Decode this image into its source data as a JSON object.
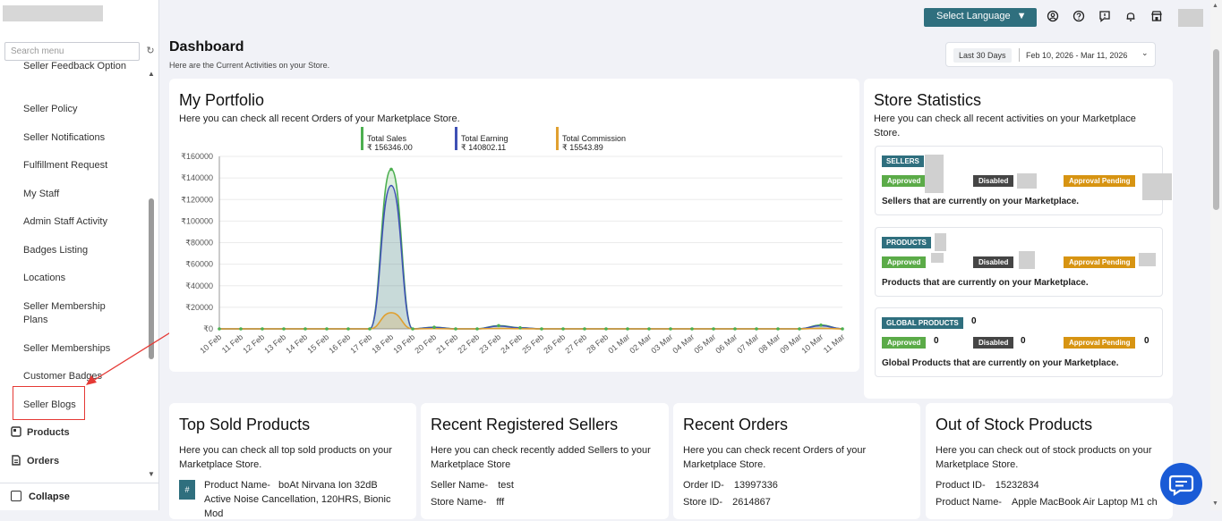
{
  "sidebar": {
    "search_placeholder": "Search menu",
    "items": [
      {
        "label": "Seller Feedback Option"
      },
      {
        "label": "Seller Policy"
      },
      {
        "label": "Seller Notifications"
      },
      {
        "label": "Fulfillment Request"
      },
      {
        "label": "My Staff"
      },
      {
        "label": "Admin Staff Activity"
      },
      {
        "label": "Badges Listing"
      },
      {
        "label": "Locations"
      },
      {
        "label": "Seller Membership Plans"
      },
      {
        "label": "Seller Memberships"
      },
      {
        "label": "Customer Badges"
      },
      {
        "label": "Seller Blogs"
      },
      {
        "label": "Products",
        "icon": "products-icon"
      },
      {
        "label": "Orders",
        "icon": "orders-icon"
      }
    ],
    "collapse_label": "Collapse"
  },
  "topbar": {
    "language_button": "Select Language",
    "icons": [
      "user-icon",
      "help-icon",
      "feedback-icon",
      "bell-icon",
      "store-icon"
    ]
  },
  "header": {
    "title": "Dashboard",
    "subtitle": "Here are the Current Activities on your Store.",
    "date_preset": "Last 30 Days",
    "date_range": "Feb 10, 2026 - Mar 11, 2026"
  },
  "portfolio": {
    "title": "My Portfolio",
    "subtitle": "Here you can check all recent Orders of your Marketplace Store.",
    "legend": [
      {
        "name": "Total Sales",
        "value": "₹ 156346.00",
        "color": "#4caf50"
      },
      {
        "name": "Total Earning",
        "value": "₹ 140802.11",
        "color": "#3f51b5"
      },
      {
        "name": "Total Commission",
        "value": "₹ 15543.89",
        "color": "#e0a030"
      }
    ]
  },
  "chart_data": {
    "type": "area",
    "title": "",
    "xlabel": "",
    "ylabel": "",
    "ylim": [
      0,
      160000
    ],
    "ytick_labels": [
      "₹160000",
      "₹140000",
      "₹120000",
      "₹100000",
      "₹80000",
      "₹60000",
      "₹40000",
      "₹20000",
      "₹0"
    ],
    "yticks": [
      160000,
      140000,
      120000,
      100000,
      80000,
      60000,
      40000,
      20000,
      0
    ],
    "categories": [
      "10 Feb",
      "11 Feb",
      "12 Feb",
      "13 Feb",
      "14 Feb",
      "15 Feb",
      "16 Feb",
      "17 Feb",
      "18 Feb",
      "19 Feb",
      "20 Feb",
      "21 Feb",
      "22 Feb",
      "23 Feb",
      "24 Feb",
      "25 Feb",
      "26 Feb",
      "27 Feb",
      "28 Feb",
      "01 Mar",
      "02 Mar",
      "03 Mar",
      "04 Mar",
      "05 Mar",
      "06 Mar",
      "07 Mar",
      "08 Mar",
      "09 Mar",
      "10 Mar",
      "11 Mar"
    ],
    "series": [
      {
        "name": "Total Sales",
        "color": "#4caf50",
        "values": [
          0,
          0,
          0,
          0,
          0,
          0,
          0,
          0,
          148000,
          0,
          1500,
          0,
          0,
          3000,
          1000,
          0,
          0,
          0,
          0,
          0,
          0,
          0,
          0,
          0,
          0,
          0,
          0,
          0,
          3500,
          0
        ]
      },
      {
        "name": "Total Earning",
        "color": "#3f51b5",
        "values": [
          0,
          0,
          0,
          0,
          0,
          0,
          0,
          0,
          133000,
          0,
          1300,
          0,
          0,
          2600,
          900,
          0,
          0,
          0,
          0,
          0,
          0,
          0,
          0,
          0,
          0,
          0,
          0,
          0,
          3000,
          0
        ]
      },
      {
        "name": "Total Commission",
        "color": "#e0a030",
        "values": [
          0,
          0,
          0,
          0,
          0,
          0,
          0,
          0,
          15000,
          0,
          200,
          0,
          0,
          400,
          100,
          0,
          0,
          0,
          0,
          0,
          0,
          0,
          0,
          0,
          0,
          0,
          0,
          0,
          500,
          0
        ]
      }
    ],
    "grid": true
  },
  "store_stats": {
    "title": "Store Statistics",
    "subtitle": "Here you can check all recent activities on your Marketplace Store.",
    "sellers": {
      "tag": "SELLERS",
      "approved": "Approved",
      "disabled": "Disabled",
      "pending": "Approval Pending",
      "desc": "Sellers that are currently on your Marketplace."
    },
    "products": {
      "tag": "PRODUCTS",
      "approved": "Approved",
      "disabled": "Disabled",
      "pending": "Approval Pending",
      "desc": "Products that are currently on your Marketplace."
    },
    "global_products": {
      "tag": "GLOBAL PRODUCTS",
      "count": "0",
      "approved": "Approved",
      "approved_val": "0",
      "disabled": "Disabled",
      "disabled_val": "0",
      "pending": "Approval Pending",
      "pending_val": "0",
      "desc": "Global Products that are currently on your Marketplace."
    }
  },
  "top_sold": {
    "title": "Top Sold Products",
    "subtitle": "Here you can check all top sold products on your Marketplace Store.",
    "badge": "#",
    "product_label": "Product Name-",
    "product_name": "boAt Nirvana Ion 32dB Active Noise Cancellation, 120HRS, Bionic Mod"
  },
  "recent_sellers": {
    "title": "Recent Registered Sellers",
    "subtitle": "Here you can check recently added Sellers to your Marketplace Store",
    "seller_label": "Seller Name-",
    "seller_value": "test",
    "store_label": "Store Name-",
    "store_value": "fff"
  },
  "recent_orders": {
    "title": "Recent Orders",
    "subtitle": "Here you can check recent Orders of your Marketplace Store.",
    "order_label": "Order ID-",
    "order_value": "13997336",
    "store_label": "Store ID-",
    "store_value": "2614867"
  },
  "out_of_stock": {
    "title": "Out of Stock Products",
    "subtitle": "Here you can check out of stock products on your Marketplace Store.",
    "product_id_label": "Product ID-",
    "product_id_value": "15232834",
    "product_name_label": "Product Name-",
    "product_name_value": "Apple MacBook Air Laptop M1 ch"
  }
}
